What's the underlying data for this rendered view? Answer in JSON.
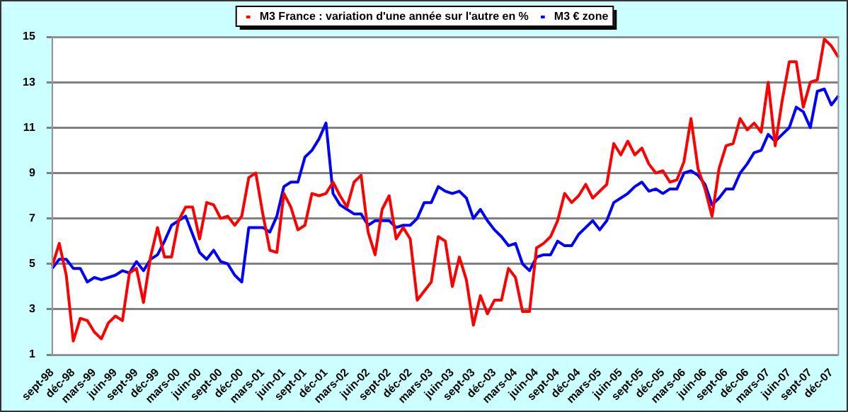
{
  "chart_data": {
    "type": "line",
    "categories": [
      "sept-98",
      null,
      null,
      "déc-98",
      null,
      null,
      "mars-99",
      null,
      null,
      "juin-99",
      null,
      null,
      "sept-99",
      null,
      null,
      "déc-99",
      null,
      null,
      "mars-00",
      null,
      null,
      "juin-00",
      null,
      null,
      "sept-00",
      null,
      null,
      "déc-00",
      null,
      null,
      "mars-01",
      null,
      null,
      "juin-01",
      null,
      null,
      "sept-01",
      null,
      null,
      "déc-01",
      null,
      null,
      "mars-02",
      null,
      null,
      "juin-02",
      null,
      null,
      "sept-02",
      null,
      null,
      "déc-02",
      null,
      null,
      "mars-03",
      null,
      null,
      "juin-03",
      null,
      null,
      "sept-03",
      null,
      null,
      "déc-03",
      null,
      null,
      "mars-04",
      null,
      null,
      "juin-04",
      null,
      null,
      "sept-04",
      null,
      null,
      "déc-04",
      null,
      null,
      "mars-05",
      null,
      null,
      "juin-05",
      null,
      null,
      "sept-05",
      null,
      null,
      "déc-05",
      null,
      null,
      "mars-06",
      null,
      null,
      "juin-06",
      null,
      null,
      "sept-06",
      null,
      null,
      "déc-06",
      null,
      null,
      "mars-07",
      null,
      null,
      "juin-07",
      null,
      null,
      "sept-07",
      null,
      null,
      "déc-07",
      null
    ],
    "series": [
      {
        "name": "M3 France : variation d'une année sur l'autre en %",
        "color": "#ff0000",
        "values": [
          4.9,
          5.9,
          4.5,
          1.6,
          2.6,
          2.5,
          2.0,
          1.7,
          2.4,
          2.7,
          2.5,
          4.6,
          4.8,
          3.3,
          5.3,
          6.6,
          5.3,
          5.3,
          6.9,
          7.5,
          7.5,
          6.1,
          7.7,
          7.6,
          7.0,
          7.1,
          6.7,
          7.1,
          8.8,
          9.0,
          7.2,
          5.6,
          5.5,
          8.1,
          7.5,
          6.5,
          6.7,
          8.1,
          8.0,
          8.1,
          8.6,
          8.0,
          7.5,
          8.6,
          8.9,
          6.4,
          5.4,
          7.4,
          8.0,
          6.1,
          6.6,
          6.1,
          3.4,
          3.8,
          4.2,
          6.2,
          6.0,
          4.0,
          5.3,
          4.3,
          2.3,
          3.6,
          2.8,
          3.4,
          3.4,
          4.8,
          4.4,
          2.9,
          2.9,
          5.7,
          5.9,
          6.2,
          6.9,
          8.1,
          7.7,
          8.0,
          8.5,
          7.9,
          8.2,
          8.5,
          10.3,
          9.8,
          10.4,
          9.8,
          10.1,
          9.4,
          9.0,
          9.1,
          8.6,
          8.7,
          9.5,
          11.4,
          9.2,
          8.3,
          7.1,
          9.2,
          10.2,
          10.3,
          11.4,
          10.9,
          11.2,
          10.8,
          13.0,
          10.2,
          12.2,
          13.9,
          13.9,
          11.9,
          13.0,
          13.1,
          14.9,
          14.6,
          14.1
        ]
      },
      {
        "name": "M3 € zone",
        "color": "#0000ff",
        "values": [
          4.8,
          5.2,
          5.2,
          4.8,
          4.8,
          4.2,
          4.4,
          4.3,
          4.4,
          4.5,
          4.7,
          4.6,
          5.1,
          4.7,
          5.2,
          5.4,
          6.0,
          6.7,
          6.9,
          7.1,
          6.3,
          5.5,
          5.2,
          5.6,
          5.1,
          5.0,
          4.5,
          4.2,
          6.6,
          6.6,
          6.6,
          6.4,
          7.1,
          8.4,
          8.6,
          8.6,
          9.7,
          10.0,
          10.5,
          11.2,
          8.1,
          7.6,
          7.4,
          7.2,
          7.2,
          6.7,
          6.9,
          6.9,
          6.9,
          6.6,
          6.7,
          6.7,
          7.0,
          7.7,
          7.7,
          8.4,
          8.2,
          8.1,
          8.2,
          7.9,
          7.0,
          7.4,
          6.9,
          6.5,
          6.2,
          5.8,
          5.9,
          5.0,
          4.7,
          5.3,
          5.4,
          5.4,
          6.0,
          5.8,
          5.8,
          6.3,
          6.6,
          6.9,
          6.5,
          6.9,
          7.7,
          7.9,
          8.1,
          8.4,
          8.6,
          8.2,
          8.3,
          8.1,
          8.3,
          8.3,
          9.0,
          9.1,
          8.9,
          8.5,
          7.6,
          7.9,
          8.3,
          8.3,
          9.0,
          9.4,
          9.9,
          10.0,
          10.7,
          10.4,
          10.7,
          11.0,
          11.9,
          11.7,
          11.0,
          12.6,
          12.7,
          12.0,
          12.4
        ]
      }
    ],
    "ylim": [
      1,
      15
    ],
    "yticks": [
      1,
      3,
      5,
      7,
      9,
      11,
      13,
      15
    ],
    "grid": "y",
    "legend": "top"
  }
}
